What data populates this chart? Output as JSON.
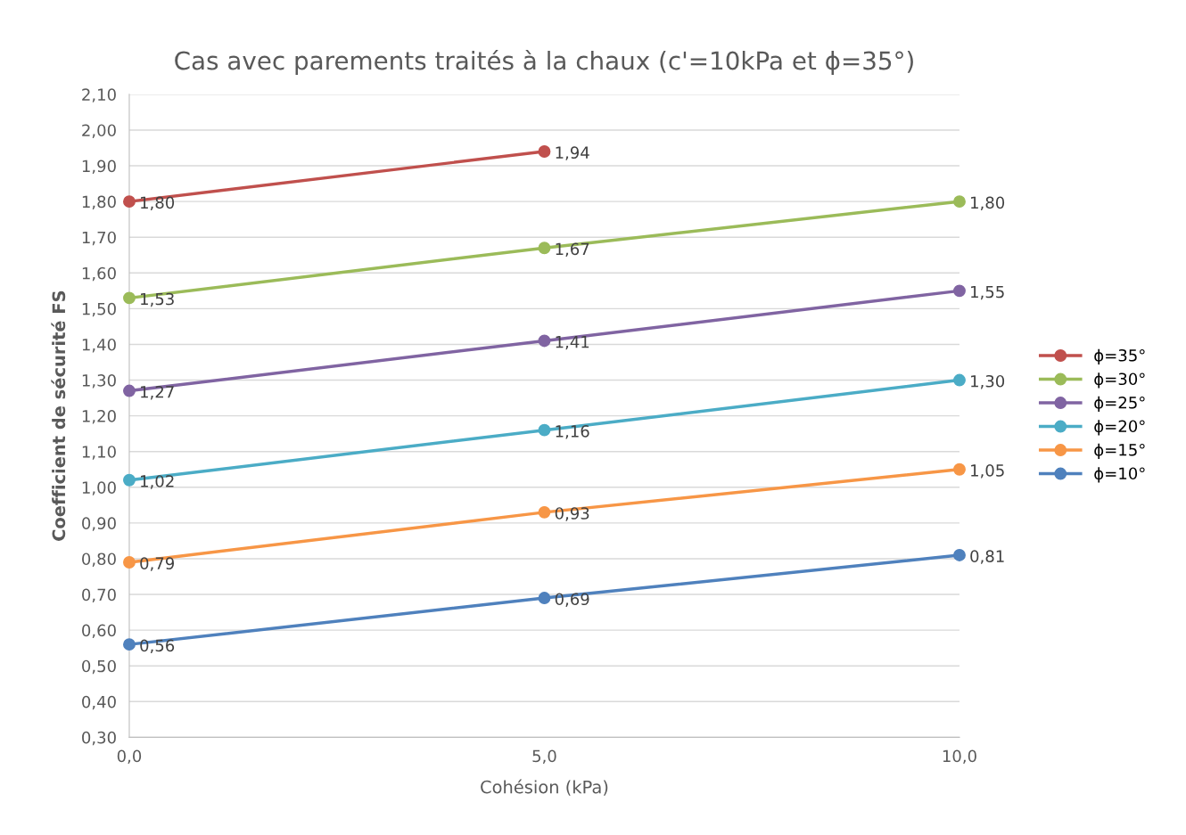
{
  "chart_data": {
    "type": "line",
    "title": "Cas avec parements traités à la chaux (c'=10kPa et ϕ=35°)",
    "xlabel": "Cohésion (kPa)",
    "ylabel": "Coefficient de sécurité FS",
    "x": [
      0,
      5,
      10
    ],
    "series": [
      {
        "name": "ϕ=35°",
        "color": "#c0504d",
        "values": [
          1.8,
          1.94,
          null
        ],
        "value_labels": [
          "1,80",
          "1,94",
          null
        ]
      },
      {
        "name": "ϕ=30°",
        "color": "#9bbb59",
        "values": [
          1.53,
          1.67,
          1.8
        ],
        "value_labels": [
          "1,53",
          "1,67",
          "1,80"
        ]
      },
      {
        "name": "ϕ=25°",
        "color": "#8064a2",
        "values": [
          1.27,
          1.41,
          1.55
        ],
        "value_labels": [
          "1,27",
          "1,41",
          "1,55"
        ]
      },
      {
        "name": "ϕ=20°",
        "color": "#4bacc6",
        "values": [
          1.02,
          1.16,
          1.3
        ],
        "value_labels": [
          "1,02",
          "1,16",
          "1,30"
        ]
      },
      {
        "name": "ϕ=15°",
        "color": "#f79646",
        "values": [
          0.79,
          0.93,
          1.05
        ],
        "value_labels": [
          "0,79",
          "0,93",
          "1,05"
        ]
      },
      {
        "name": "ϕ=10°",
        "color": "#4f81bd",
        "values": [
          0.56,
          0.69,
          0.81
        ],
        "value_labels": [
          "0,56",
          "0,69",
          "0,81"
        ]
      }
    ],
    "xlim": [
      0,
      10
    ],
    "xticks": [
      {
        "value": 0,
        "label": "0,0"
      },
      {
        "value": 5,
        "label": "5,0"
      },
      {
        "value": 10,
        "label": "10,0"
      }
    ],
    "ylim": [
      0.3,
      2.1
    ],
    "yticks": [
      {
        "value": 0.3,
        "label": "0,30"
      },
      {
        "value": 0.4,
        "label": "0,40"
      },
      {
        "value": 0.5,
        "label": "0,50"
      },
      {
        "value": 0.6,
        "label": "0,60"
      },
      {
        "value": 0.7,
        "label": "0,70"
      },
      {
        "value": 0.8,
        "label": "0,80"
      },
      {
        "value": 0.9,
        "label": "0,90"
      },
      {
        "value": 1.0,
        "label": "1,00"
      },
      {
        "value": 1.1,
        "label": "1,10"
      },
      {
        "value": 1.2,
        "label": "1,20"
      },
      {
        "value": 1.3,
        "label": "1,30"
      },
      {
        "value": 1.4,
        "label": "1,40"
      },
      {
        "value": 1.5,
        "label": "1,50"
      },
      {
        "value": 1.6,
        "label": "1,60"
      },
      {
        "value": 1.7,
        "label": "1,70"
      },
      {
        "value": 1.8,
        "label": "1,80"
      },
      {
        "value": 1.9,
        "label": "1,90"
      },
      {
        "value": 2.0,
        "label": "2,00"
      },
      {
        "value": 2.1,
        "label": "2,10"
      }
    ],
    "grid": "y",
    "legend": "right",
    "marker": "circle",
    "line_style": "solid"
  }
}
